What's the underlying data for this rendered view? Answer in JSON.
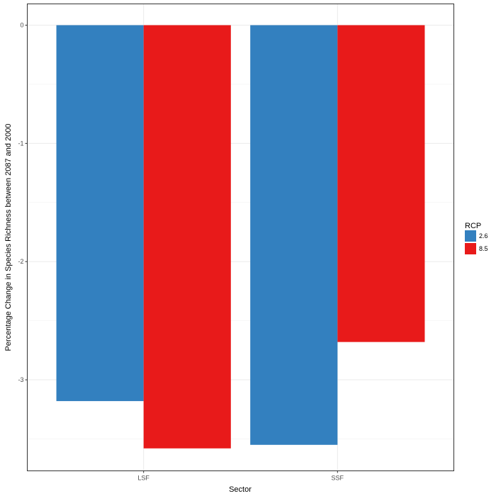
{
  "chart_data": {
    "type": "bar",
    "title": "",
    "xlabel": "Sector",
    "ylabel": "Percentage Change in Species Richness between 2087 and 2000",
    "categories": [
      "LSF",
      "SSF"
    ],
    "series": [
      {
        "name": "2.6",
        "color": "#3380BF",
        "values": [
          -3.18,
          -3.55
        ]
      },
      {
        "name": "8.5",
        "color": "#E81A1A",
        "values": [
          -3.58,
          -2.68
        ]
      }
    ],
    "yticks": [
      0,
      -1,
      -2,
      -3
    ],
    "ylim": [
      -3.77,
      0.18
    ],
    "grid": true,
    "legend": {
      "title": "RCP",
      "position": "right"
    }
  }
}
